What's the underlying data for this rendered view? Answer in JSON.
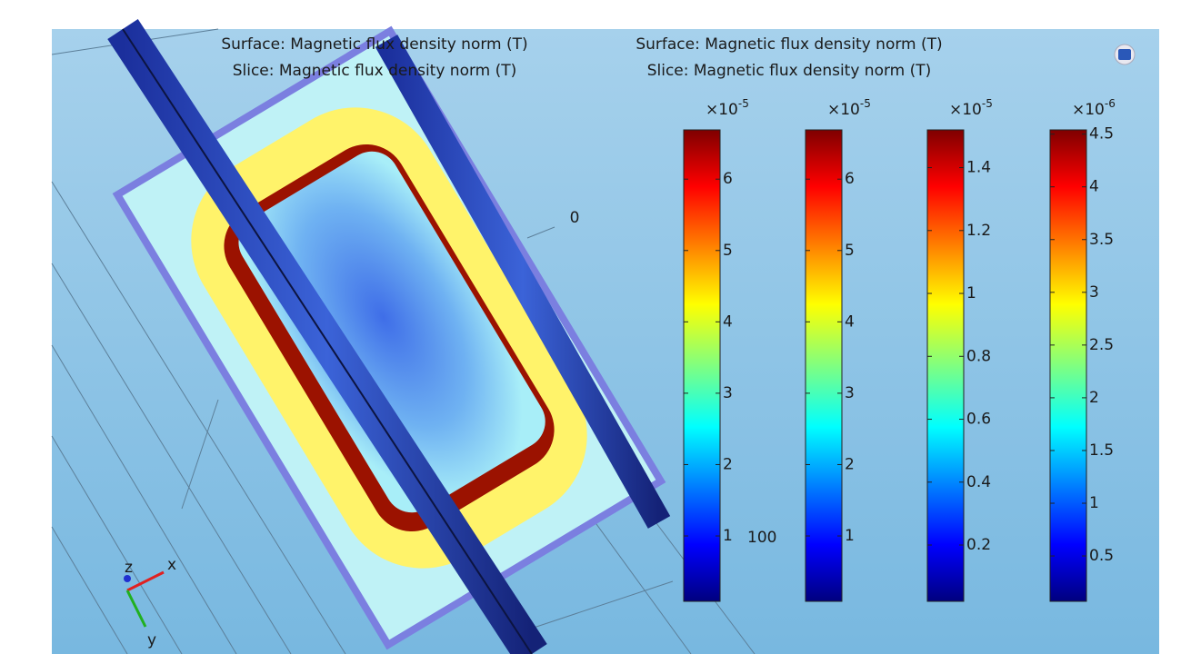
{
  "titles": [
    {
      "surface": "Surface: Magnetic flux density norm (T)",
      "slice": "Slice: Magnetic flux density norm (T)"
    },
    {
      "surface": "Surface: Magnetic flux density norm (T)",
      "slice": "Slice: Magnetic flux density norm (T)"
    }
  ],
  "colorbars": [
    {
      "multiplier": {
        "base": "×10",
        "exponent": "-5"
      },
      "range": [
        0.084,
        6.69
      ],
      "ticks": [
        1,
        2,
        3,
        4,
        5,
        6
      ]
    },
    {
      "multiplier": {
        "base": "×10",
        "exponent": "-5"
      },
      "range": [
        0.084,
        6.69
      ],
      "ticks": [
        1,
        2,
        3,
        4,
        5,
        6
      ]
    },
    {
      "multiplier": {
        "base": "×10",
        "exponent": "-5"
      },
      "range": [
        0.021,
        1.52
      ],
      "ticks": [
        0.2,
        0.4,
        0.6,
        0.8,
        1,
        1.2,
        1.4
      ]
    },
    {
      "multiplier": {
        "base": "×10",
        "exponent": "-6"
      },
      "range": [
        0.07,
        4.54
      ],
      "ticks": [
        0.5,
        1,
        1.5,
        2,
        2.5,
        3,
        3.5,
        4,
        4.5
      ]
    }
  ],
  "scene_labels": {
    "origin": "0",
    "coordinate": "100"
  },
  "triad": {
    "x": "x",
    "y": "y",
    "z": "z"
  }
}
